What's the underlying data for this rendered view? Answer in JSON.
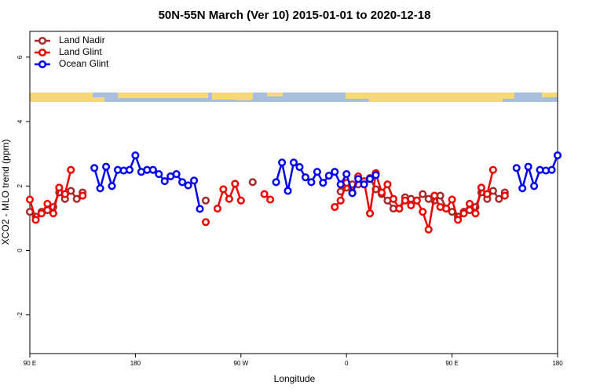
{
  "chart_data": {
    "type": "line",
    "title": "50N-55N March (Ver 10)   2015-01-01 to 2020-12-18",
    "x_label": "Longitude",
    "y_label": "XCO2 - MLO trend (ppm)",
    "legend": "top-left",
    "x": [
      90,
      95,
      100,
      105,
      110,
      115,
      120,
      125,
      130,
      135,
      140,
      145,
      150,
      155,
      160,
      165,
      170,
      175,
      180,
      185,
      190,
      195,
      200,
      205,
      210,
      215,
      220,
      225,
      230,
      235,
      240,
      245,
      250,
      255,
      260,
      265,
      270,
      275,
      280,
      285,
      290,
      295,
      300,
      305,
      310,
      315,
      320,
      325,
      330,
      335,
      340,
      345,
      350,
      355,
      360,
      365,
      370,
      375,
      380,
      385,
      390,
      395,
      400,
      405,
      410,
      415,
      420,
      425,
      430,
      435,
      440,
      445,
      450,
      455,
      460,
      465,
      470,
      475,
      480,
      485,
      490,
      495,
      500,
      505,
      510,
      515,
      520,
      525,
      530,
      535,
      540
    ],
    "xlim": [
      90,
      540
    ],
    "xticks": [
      {
        "value": 90,
        "label": "90 E"
      },
      180,
      {
        "value": 270,
        "label": "90 W"
      },
      {
        "value": 360,
        "label": "0"
      },
      {
        "value": 450,
        "label": "90 E"
      },
      {
        "value": 540,
        "label": "180"
      }
    ],
    "ylim": [
      -3.2,
      6.8
    ],
    "yticks": [
      -2,
      0,
      2,
      4,
      6
    ],
    "series": [
      {
        "name": "Land Nadir",
        "color": "#a52a2a",
        "values": [
          1.2,
          1.05,
          1.2,
          1.25,
          1.35,
          1.8,
          1.6,
          1.85,
          1.6,
          1.8,
          null,
          null,
          null,
          null,
          null,
          null,
          null,
          null,
          null,
          null,
          null,
          null,
          null,
          null,
          null,
          null,
          null,
          null,
          null,
          null,
          1.55,
          null,
          null,
          null,
          null,
          null,
          null,
          null,
          2.12,
          null,
          null,
          null,
          null,
          null,
          null,
          null,
          null,
          null,
          null,
          null,
          null,
          null,
          null,
          1.83,
          1.95,
          2.05,
          2.05,
          2.15,
          2.25,
          1.9,
          1.75,
          1.55,
          1.3,
          1.3,
          1.65,
          1.6,
          1.55,
          1.75,
          1.6,
          1.55,
          1.7,
          1.3,
          1.2,
          1.05,
          1.2,
          1.25,
          1.35,
          1.8,
          1.6,
          1.85,
          1.6,
          1.8,
          null,
          null,
          null,
          null,
          null,
          null,
          null,
          null,
          null
        ]
      },
      {
        "name": "Land Glint",
        "color": "#ee0000",
        "values": [
          1.58,
          0.95,
          1.15,
          1.45,
          1.15,
          1.95,
          1.75,
          2.5,
          null,
          1.7,
          null,
          null,
          null,
          null,
          null,
          null,
          null,
          null,
          null,
          null,
          null,
          null,
          null,
          null,
          null,
          null,
          null,
          null,
          null,
          null,
          0.88,
          null,
          1.3,
          1.9,
          1.6,
          2.07,
          1.55,
          null,
          null,
          null,
          1.75,
          1.58,
          null,
          null,
          null,
          null,
          null,
          null,
          null,
          null,
          null,
          null,
          1.35,
          1.55,
          2.1,
          1.8,
          2.3,
          2.15,
          1.15,
          2.4,
          1.8,
          2.05,
          1.6,
          1.3,
          1.55,
          1.4,
          1.55,
          1.2,
          0.65,
          1.7,
          1.35,
          1.3,
          1.58,
          0.95,
          1.15,
          1.45,
          1.15,
          1.95,
          1.75,
          2.5,
          null,
          1.7,
          null,
          null,
          null,
          null,
          null,
          null,
          null,
          null,
          null
        ]
      },
      {
        "name": "Ocean Glint",
        "color": "#0000ee",
        "values": [
          null,
          null,
          null,
          null,
          null,
          null,
          null,
          null,
          null,
          null,
          null,
          2.56,
          1.93,
          2.6,
          2.0,
          2.5,
          2.48,
          2.5,
          2.95,
          2.44,
          2.5,
          2.5,
          2.37,
          2.15,
          2.3,
          2.37,
          2.12,
          2.02,
          2.17,
          1.29,
          null,
          null,
          null,
          null,
          null,
          null,
          null,
          null,
          null,
          null,
          null,
          null,
          2.12,
          2.73,
          1.85,
          2.73,
          2.59,
          2.27,
          2.12,
          2.44,
          2.1,
          2.32,
          2.44,
          2.05,
          2.37,
          1.78,
          2.22,
          2.05,
          2.22,
          2.34,
          null,
          null,
          null,
          null,
          null,
          null,
          null,
          null,
          null,
          null,
          null,
          null,
          null,
          null,
          null,
          null,
          null,
          null,
          null,
          null,
          null,
          null,
          null,
          2.56,
          1.93,
          2.6,
          2.0,
          2.5,
          2.48,
          2.5,
          2.95
        ]
      }
    ]
  }
}
